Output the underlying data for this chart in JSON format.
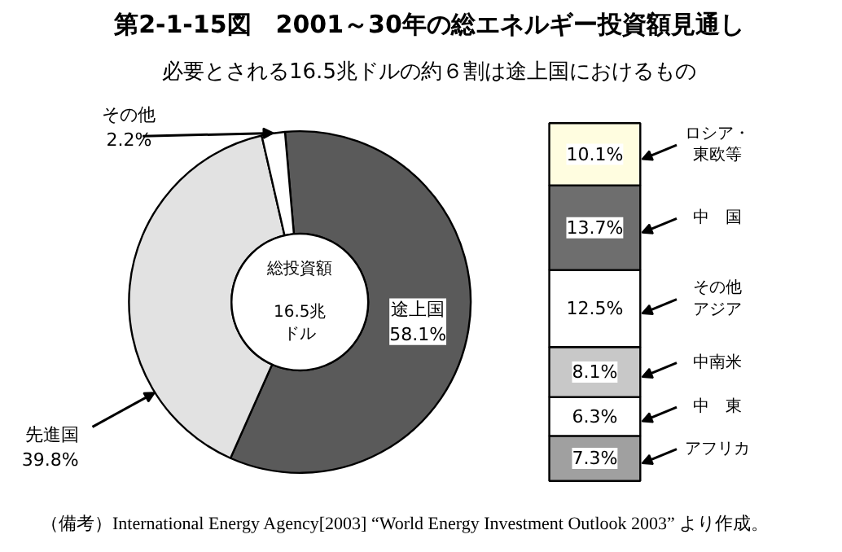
{
  "chart_data": [
    {
      "type": "donut",
      "title": "第2-1-15図　2001～30年の総エネルギー投資額見通し",
      "subtitle": "必要とされる16.5兆ドルの約６割は途上国におけるもの",
      "categories": [
        "途上国",
        "先進国",
        "その他"
      ],
      "values": [
        58.1,
        39.8,
        2.2
      ],
      "colors": [
        "#5a5a5a",
        "#e2e2e2",
        "#ffffff"
      ],
      "value_labels": [
        "58.1%",
        "39.8%",
        "2.2%"
      ],
      "annotations": [
        "総投資額",
        "16.5兆ドル",
        "（備考）International Energy Agency[2003] “World Energy Investment Outlook 2003” より作成。"
      ]
    },
    {
      "type": "bar",
      "stacked": true,
      "legend": "right",
      "categories": [
        null
      ],
      "series": [
        {
          "name": "アフリカ",
          "color": "#a0a0a0",
          "values": [
            7.3
          ],
          "value_labels": [
            "7.3%"
          ]
        },
        {
          "name": "中　東",
          "color": "#ffffff",
          "values": [
            6.3
          ],
          "value_labels": [
            "6.3%"
          ]
        },
        {
          "name": "中南米",
          "color": "#c8c8c8",
          "values": [
            8.1
          ],
          "value_labels": [
            "8.1%"
          ]
        },
        {
          "name": "その他アジア",
          "color": "#ffffff",
          "values": [
            12.5
          ],
          "value_labels": [
            "12.5%"
          ]
        },
        {
          "name": "中　国",
          "color": "#6e6e6e",
          "values": [
            13.7
          ],
          "value_labels": [
            "13.7%"
          ]
        },
        {
          "name": "ロシア・東欧等",
          "color": "#fffde0",
          "values": [
            10.1
          ],
          "value_labels": [
            "10.1%"
          ]
        }
      ]
    }
  ]
}
